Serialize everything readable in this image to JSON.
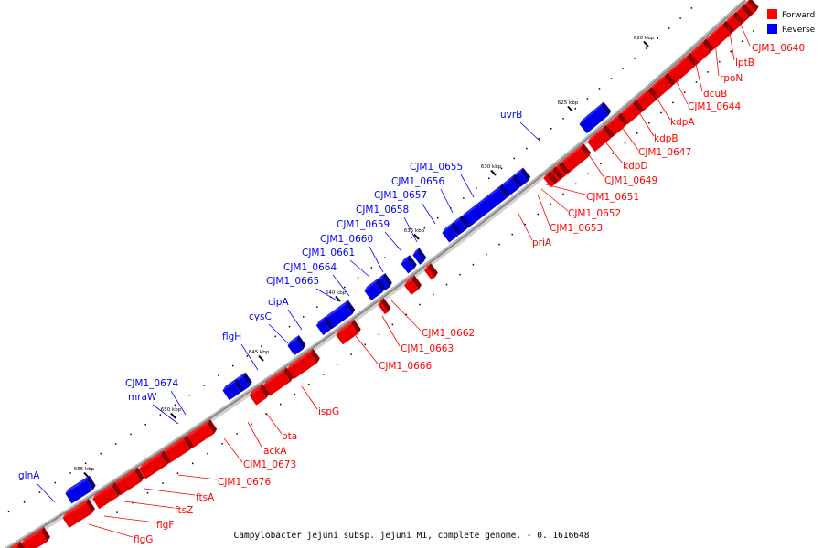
{
  "caption": "Campylobacter jejuni subsp. jejuni M1, complete genome. - 0..1616648",
  "legend": [
    {
      "label": "Forward",
      "color": "#ff0000"
    },
    {
      "label": "Reverse",
      "color": "#0000ff"
    }
  ],
  "colors": {
    "forward": "#ff0000",
    "reverse": "#0000ff",
    "backbone": "#8a8a8a"
  },
  "ticks": [
    "620 kbp",
    "625 kbp",
    "630 kbp",
    "635 kbp",
    "640 kbp",
    "645 kbp",
    "650 kbp",
    "655 kbp"
  ],
  "forward_labels": [
    "CJM1_0640",
    "lptB",
    "rpoN",
    "dcuB",
    "CJM1_0644",
    "kdpA",
    "kdpB",
    "CJM1_0647",
    "kdpD",
    "CJM1_0649",
    "CJM1_0651",
    "CJM1_0652",
    "CJM1_0653",
    "priA",
    "CJM1_0662",
    "CJM1_0663",
    "CJM1_0666",
    "ispG",
    "pta",
    "ackA",
    "CJM1_0673",
    "CJM1_0676",
    "ftsA",
    "ftsZ",
    "flgF",
    "flgG"
  ],
  "reverse_labels": [
    "uvrB",
    "CJM1_0655",
    "CJM1_0656",
    "CJM1_0657",
    "CJM1_0658",
    "CJM1_0659",
    "CJM1_0660",
    "CJM1_0661",
    "CJM1_0664",
    "CJM1_0665",
    "cipA",
    "cysC",
    "flgH",
    "CJM1_0674",
    "mraW",
    "glnA"
  ]
}
